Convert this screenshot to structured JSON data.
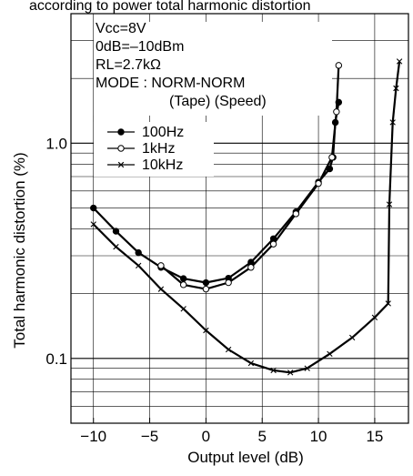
{
  "top_text": "according to power total harmonic distortion",
  "chart_data": {
    "type": "line",
    "title": "",
    "xlabel": "Output level (dB)",
    "ylabel": "Total harmonic distortion (%)",
    "xlim": [
      -12,
      18
    ],
    "ylim": [
      0.05,
      4.0
    ],
    "yscale": "log",
    "x_ticks": [
      -10,
      -5,
      0,
      5,
      10,
      15
    ],
    "x_tick_labels": [
      "−10",
      "−5",
      "0",
      "5",
      "10",
      "15"
    ],
    "y_ticks": [
      0.1,
      1.0
    ],
    "y_tick_labels": [
      "0.1",
      "1.0"
    ],
    "grid": true,
    "legend_position": "upper-left",
    "conditions": [
      "Vcc=8V",
      "0dB=–10dBm",
      "RL=2.7kΩ",
      "MODE : NORM-NORM",
      "(Tape)  (Speed)"
    ],
    "series": [
      {
        "name": "100Hz",
        "marker": "filled-circle",
        "x": [
          -10,
          -8,
          -6,
          -4,
          -2,
          0,
          2,
          4,
          6,
          8,
          10,
          11,
          11.3,
          11.5,
          11.8
        ],
        "y": [
          0.5,
          0.39,
          0.31,
          0.265,
          0.235,
          0.225,
          0.236,
          0.28,
          0.36,
          0.48,
          0.66,
          0.76,
          0.86,
          1.25,
          1.55
        ]
      },
      {
        "name": "1kHz",
        "marker": "open-circle",
        "x": [
          -4,
          -2,
          0,
          2,
          4,
          6,
          8,
          10,
          11.2,
          11.6,
          11.8
        ],
        "y": [
          0.27,
          0.22,
          0.21,
          0.225,
          0.265,
          0.34,
          0.47,
          0.65,
          0.86,
          1.4,
          2.3
        ]
      },
      {
        "name": "10kHz",
        "marker": "cross",
        "x": [
          -10,
          -8,
          -6,
          -4,
          -2,
          0,
          2,
          4,
          6,
          7.5,
          9,
          11,
          13,
          15,
          16.2,
          16.3,
          16.6,
          16.9,
          17.2
        ],
        "y": [
          0.42,
          0.33,
          0.27,
          0.21,
          0.17,
          0.135,
          0.11,
          0.095,
          0.088,
          0.086,
          0.09,
          0.105,
          0.125,
          0.155,
          0.18,
          0.52,
          1.25,
          1.8,
          2.4
        ]
      }
    ]
  }
}
